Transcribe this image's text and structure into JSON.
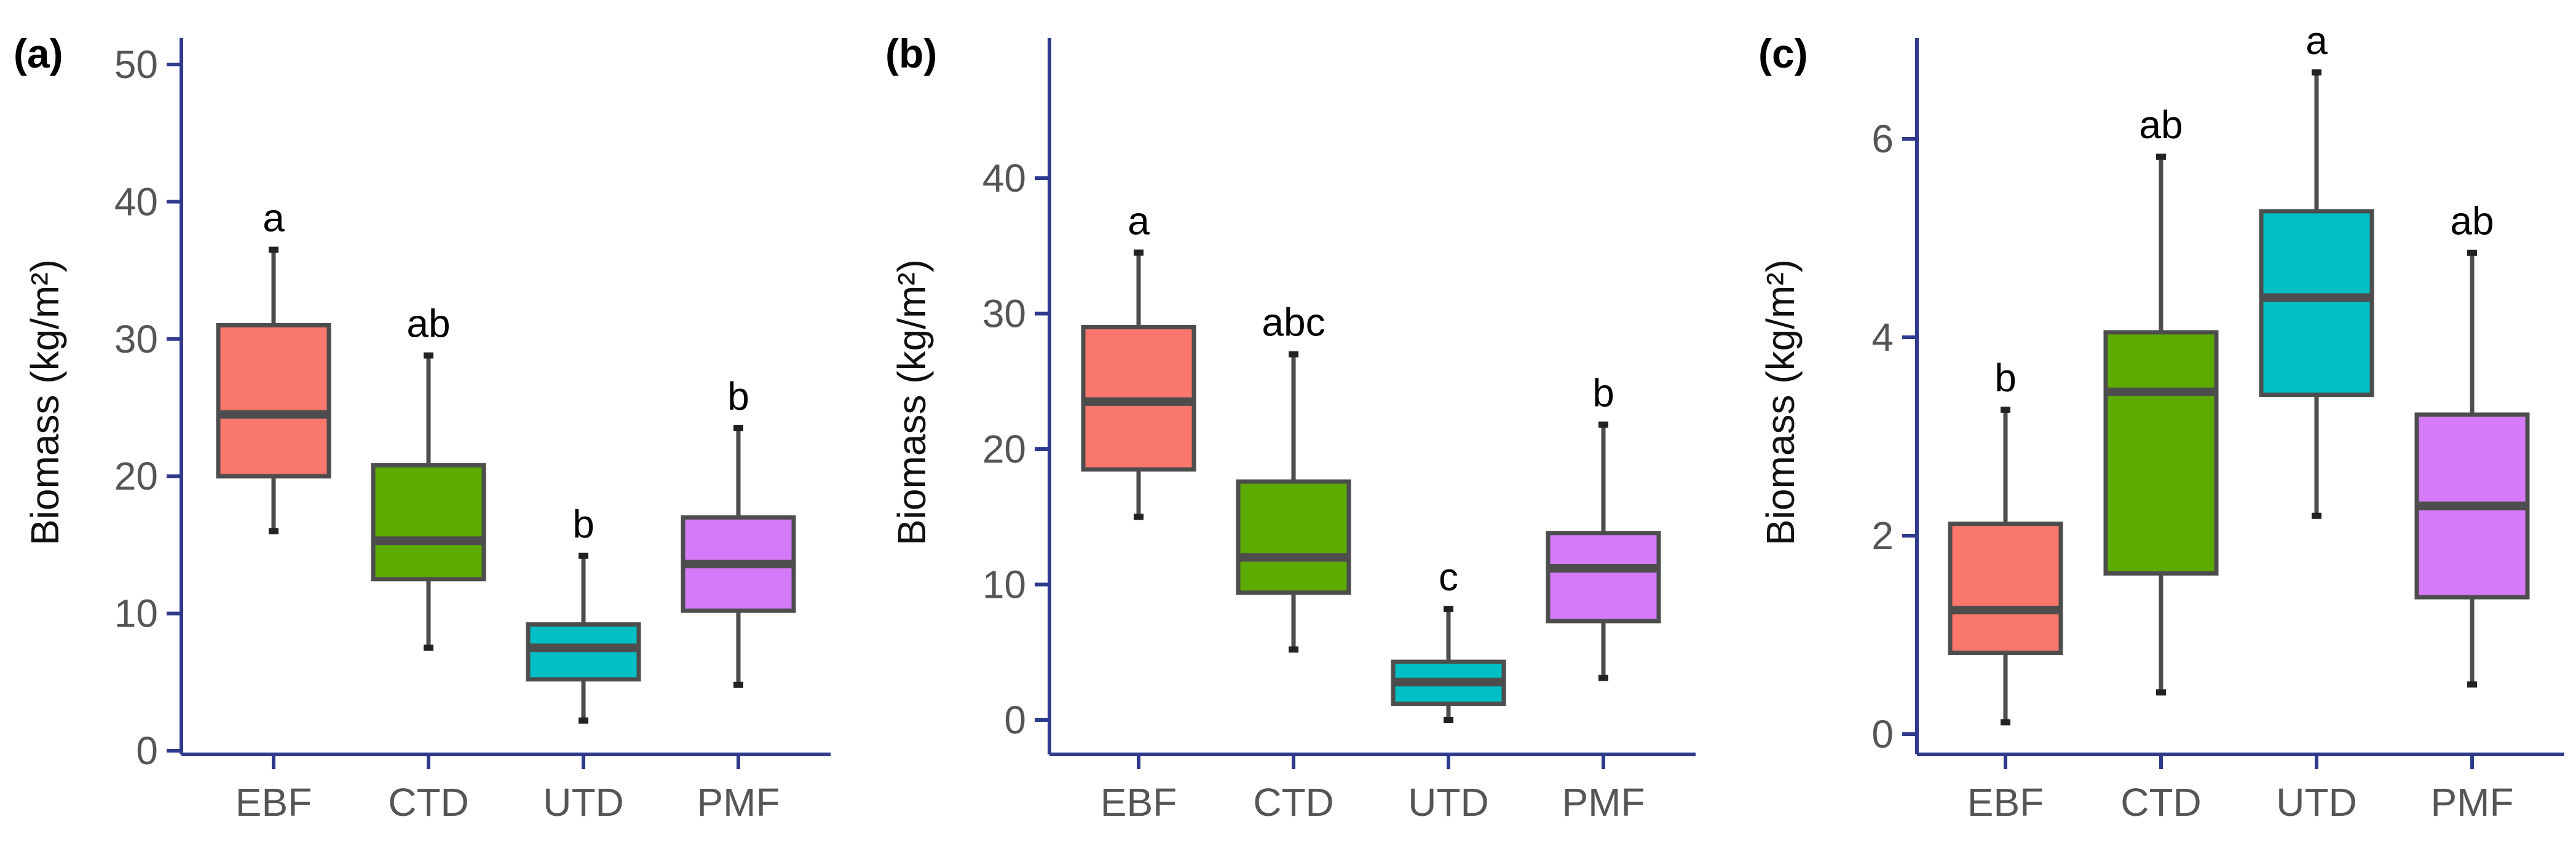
{
  "colors": {
    "axis": "#2e3a8c",
    "box_outline": "#4d4d4d",
    "tick_text": "#555555",
    "EBF": "#fa776c",
    "CTD": "#5bab00",
    "UTD": "#00bfc4",
    "PMF": "#d57af9"
  },
  "chart_data": [
    {
      "type": "box",
      "panel": "(a)",
      "ylabel": "Biomass (kg/m²)",
      "ylim": [
        0,
        52
      ],
      "yticks": [
        0,
        10,
        20,
        30,
        40,
        50
      ],
      "categories": [
        "EBF",
        "CTD",
        "UTD",
        "PMF"
      ],
      "boxes": [
        {
          "category": "EBF",
          "min": 16,
          "q1": 20,
          "median": 24.5,
          "q3": 31,
          "max": 36.5,
          "letter": "a"
        },
        {
          "category": "CTD",
          "min": 7.5,
          "q1": 12.5,
          "median": 15.3,
          "q3": 20.8,
          "max": 28.8,
          "letter": "ab"
        },
        {
          "category": "UTD",
          "min": 2.2,
          "q1": 5.2,
          "median": 7.5,
          "q3": 9.2,
          "max": 14.2,
          "letter": "b"
        },
        {
          "category": "PMF",
          "min": 4.8,
          "q1": 10.2,
          "median": 13.6,
          "q3": 17,
          "max": 23.5,
          "letter": "b"
        }
      ]
    },
    {
      "type": "box",
      "panel": "(b)",
      "ylabel": "Biomass (kg/m²)",
      "ylim": [
        -2,
        50
      ],
      "yticks": [
        0,
        10,
        20,
        30,
        40
      ],
      "categories": [
        "EBF",
        "CTD",
        "UTD",
        "PMF"
      ],
      "boxes": [
        {
          "category": "EBF",
          "min": 15,
          "q1": 18.5,
          "median": 23.5,
          "q3": 29,
          "max": 34.5,
          "letter": "a"
        },
        {
          "category": "CTD",
          "min": 5.2,
          "q1": 9.4,
          "median": 12,
          "q3": 17.6,
          "max": 27,
          "letter": "abc"
        },
        {
          "category": "UTD",
          "min": 0,
          "q1": 1.2,
          "median": 2.8,
          "q3": 4.3,
          "max": 8.2,
          "letter": "c"
        },
        {
          "category": "PMF",
          "min": 3.1,
          "q1": 7.3,
          "median": 11.2,
          "q3": 13.8,
          "max": 21.8,
          "letter": "b"
        }
      ]
    },
    {
      "type": "box",
      "panel": "(c)",
      "ylabel": "Biomass (kg/m²)",
      "ylim": [
        -0.2,
        7.0
      ],
      "yticks": [
        0,
        2,
        4,
        6
      ],
      "categories": [
        "EBF",
        "CTD",
        "UTD",
        "PMF"
      ],
      "boxes": [
        {
          "category": "EBF",
          "min": 0.12,
          "q1": 0.82,
          "median": 1.25,
          "q3": 2.12,
          "max": 3.27,
          "letter": "b"
        },
        {
          "category": "CTD",
          "min": 0.42,
          "q1": 1.62,
          "median": 3.45,
          "q3": 4.05,
          "max": 5.82,
          "letter": "ab"
        },
        {
          "category": "UTD",
          "min": 2.2,
          "q1": 3.42,
          "median": 4.4,
          "q3": 5.27,
          "max": 6.67,
          "letter": "a"
        },
        {
          "category": "PMF",
          "min": 0.5,
          "q1": 1.38,
          "median": 2.3,
          "q3": 3.22,
          "max": 4.85,
          "letter": "ab"
        }
      ]
    }
  ]
}
